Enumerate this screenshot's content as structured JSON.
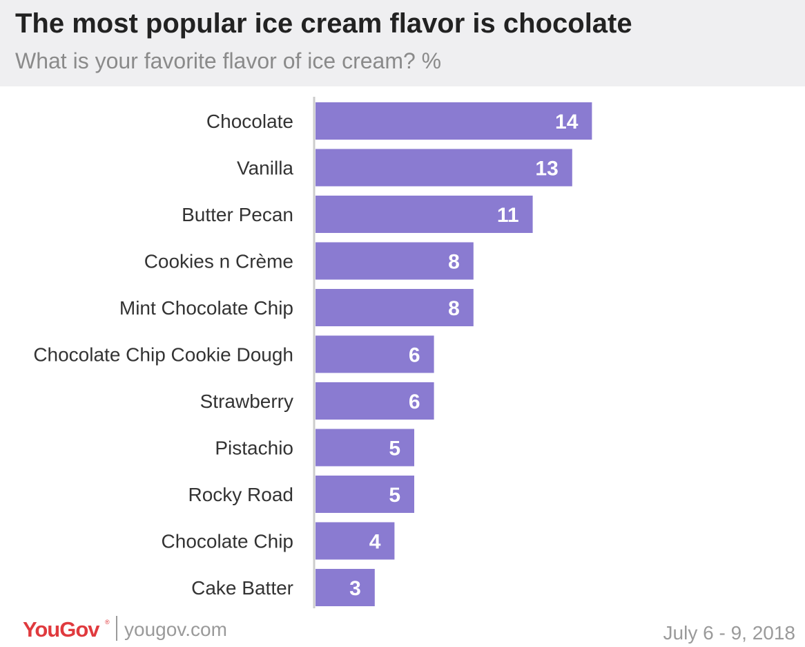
{
  "header": {
    "title": "The most popular ice cream flavor is chocolate",
    "subtitle": "What is your favorite flavor of ice cream? %"
  },
  "footer": {
    "brand": "YouGov",
    "registered": "®",
    "url": "yougov.com",
    "date": "July 6 - 9, 2018"
  },
  "colors": {
    "bar": "#8a7bd1",
    "bar_label": "#ffffff",
    "category_label": "#333333",
    "axis_line": "#cccccc",
    "header_bg": "#efeff1",
    "brand": "#e03a3e"
  },
  "chart_data": {
    "type": "bar",
    "orientation": "horizontal",
    "title": "The most popular ice cream flavor is chocolate",
    "subtitle": "What is your favorite flavor of ice cream? %",
    "categories": [
      "Chocolate",
      "Vanilla",
      "Butter Pecan",
      "Cookies n Crème",
      "Mint Chocolate Chip",
      "Chocolate Chip Cookie Dough",
      "Strawberry",
      "Pistachio",
      "Rocky Road",
      "Chocolate Chip",
      "Cake Batter"
    ],
    "values": [
      14,
      13,
      11,
      8,
      8,
      6,
      6,
      5,
      5,
      4,
      3
    ],
    "data_labels": [
      "14",
      "13",
      "11",
      "8",
      "8",
      "6",
      "6",
      "5",
      "5",
      "4",
      "3"
    ],
    "xlabel": "",
    "ylabel": "",
    "xlim": [
      0,
      25
    ],
    "grid": false,
    "legend": "none"
  }
}
